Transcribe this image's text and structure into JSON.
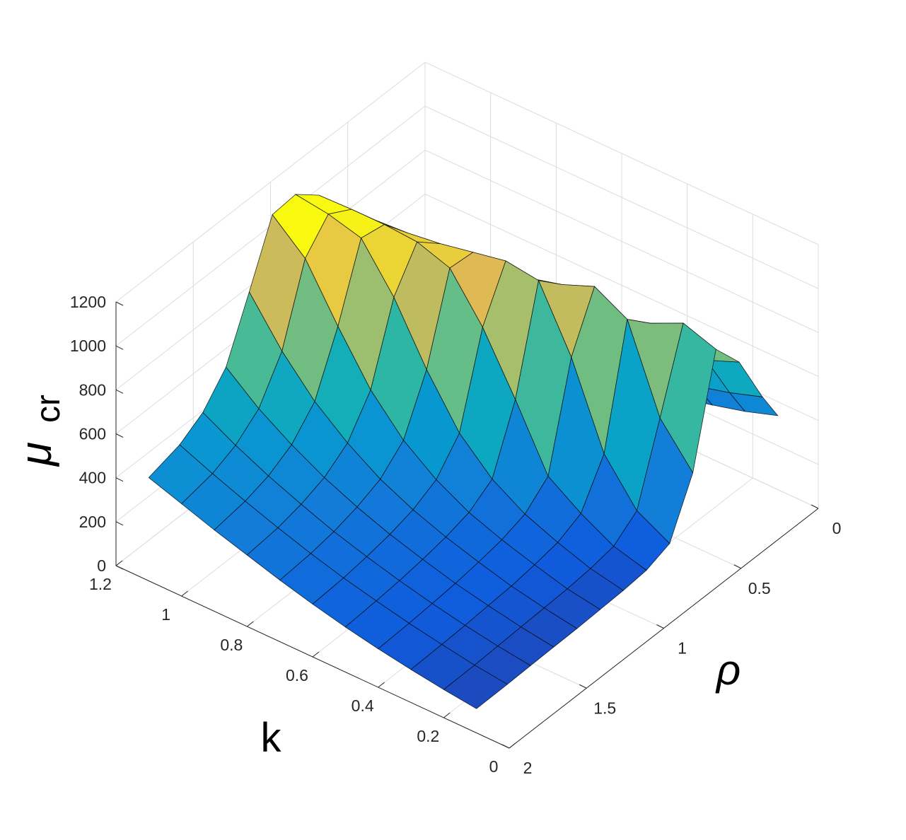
{
  "chart_data": {
    "type": "surface",
    "xlabel": "k",
    "ylabel": "ρ",
    "zlabel": "μ",
    "zlabel_subscript": "cr",
    "grid": true,
    "colormap": "parula",
    "axes": {
      "k": {
        "range": [
          0,
          1.2
        ],
        "ticks": [
          "0",
          "0.2",
          "0.4",
          "0.6",
          "0.8",
          "1",
          "1.2"
        ]
      },
      "rho": {
        "range": [
          0,
          2
        ],
        "ticks": [
          "0",
          "0.5",
          "1",
          "1.5",
          "2"
        ]
      },
      "mu": {
        "range": [
          0,
          1200
        ],
        "ticks": [
          "0",
          "200",
          "400",
          "600",
          "800",
          "1000",
          "1200"
        ]
      }
    },
    "k_values": [
      0.1,
      0.2,
      0.3,
      0.4,
      0.5,
      0.6,
      0.7,
      0.8,
      0.9,
      1.0,
      1.1
    ],
    "rho_values": [
      0.05,
      0.15,
      0.3,
      0.45,
      0.6,
      0.75,
      0.9,
      1.05,
      1.2,
      1.35,
      1.5,
      1.65,
      1.8,
      2.0
    ],
    "mu_values": [
      [
        380,
        520,
        760,
        900,
        420,
        180,
        140,
        130,
        125,
        120,
        118,
        115,
        112,
        110
      ],
      [
        330,
        470,
        700,
        950,
        600,
        260,
        180,
        160,
        150,
        145,
        140,
        135,
        130,
        128
      ],
      [
        290,
        430,
        650,
        880,
        980,
        450,
        260,
        210,
        190,
        175,
        168,
        160,
        155,
        150
      ],
      [
        255,
        400,
        610,
        830,
        1060,
        820,
        360,
        270,
        235,
        215,
        200,
        190,
        182,
        175
      ],
      [
        225,
        370,
        575,
        790,
        1000,
        1100,
        640,
        360,
        290,
        260,
        240,
        225,
        215,
        205
      ],
      [
        200,
        345,
        545,
        755,
        960,
        1120,
        900,
        500,
        370,
        315,
        285,
        265,
        250,
        240
      ],
      [
        180,
        320,
        520,
        725,
        930,
        1090,
        1100,
        720,
        480,
        385,
        340,
        310,
        292,
        280
      ],
      [
        160,
        300,
        500,
        700,
        900,
        1060,
        1150,
        980,
        640,
        480,
        405,
        365,
        340,
        325
      ],
      [
        145,
        282,
        480,
        680,
        880,
        1040,
        1160,
        1180,
        860,
        600,
        485,
        425,
        392,
        370
      ],
      [
        130,
        265,
        465,
        665,
        865,
        1030,
        1160,
        1220,
        1100,
        760,
        580,
        495,
        448,
        420
      ],
      [
        118,
        250,
        450,
        650,
        850,
        1020,
        1155,
        1240,
        1230,
        960,
        700,
        575,
        510,
        470
      ]
    ]
  }
}
